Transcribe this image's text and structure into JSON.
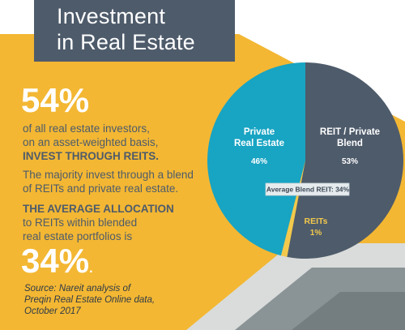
{
  "header": {
    "title_line1": "Investment",
    "title_line2": "in Real Estate"
  },
  "left": {
    "stat1": "54%",
    "stat1_text_line1": "of all real estate investors,",
    "stat1_text_line2": "on an asset-weighted basis,",
    "stat1_text_line3": "INVEST THROUGH REITS.",
    "majority_line1": "The majority invest through a blend",
    "majority_line2": "of REITs and private real estate.",
    "avg_line1": "THE AVERAGE ALLOCATION",
    "avg_line2": "to REITs within blended",
    "avg_line3": "real estate portfolios is",
    "stat2": "34%",
    "stat2_suffix": ".",
    "source_line1": "Source: Nareit analysis of",
    "source_line2": "Preqin Real Estate Online data,",
    "source_line3": "October 2017"
  },
  "colors": {
    "yellow": "#f3b733",
    "slate": "#4e5b6b",
    "teal": "#18a4c3",
    "reit_yellow": "#f2c94c",
    "gray_shape": "#8a9396",
    "light_gray": "#d9dcda"
  },
  "chart_data": {
    "type": "pie",
    "slices": [
      {
        "label_line1": "Private",
        "label_line2": "Real Estate",
        "value": 46,
        "value_label": "46%",
        "color": "#18a4c3"
      },
      {
        "label_line1": "REIT / Private",
        "label_line2": "Blend",
        "value": 53,
        "value_label": "53%",
        "color": "#4e5b6b"
      },
      {
        "label_line1": "REITs",
        "label_line2": "",
        "value": 1,
        "value_label": "1%",
        "color": "#f2c94c"
      }
    ],
    "annotation": "Average Blend REIT: 34%"
  }
}
